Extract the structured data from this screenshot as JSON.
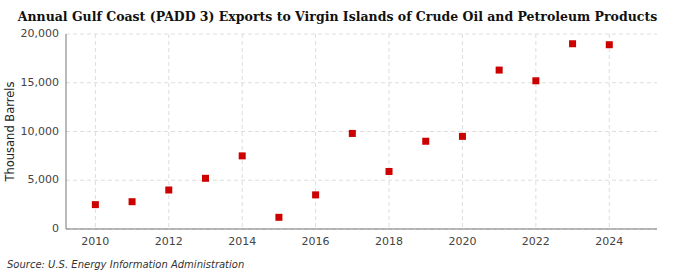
{
  "chart_data": {
    "type": "scatter",
    "title": "Annual Gulf Coast (PADD 3) Exports to Virgin Islands of Crude Oil and Petroleum Products",
    "ylabel": "Thousand Barrels",
    "annotations": [
      "Source: U.S. Energy Information Administration"
    ],
    "x": [
      2010,
      2011,
      2012,
      2013,
      2014,
      2015,
      2016,
      2017,
      2018,
      2019,
      2020,
      2021,
      2022,
      2023,
      2024
    ],
    "values": [
      2500,
      2800,
      4000,
      5200,
      7500,
      1200,
      3500,
      9800,
      5900,
      9000,
      9500,
      16300,
      15200,
      19000,
      18900
    ],
    "color": "#cc0000",
    "marker": "square",
    "xlim": [
      2009.2,
      2025.3
    ],
    "xticks": [
      2010,
      2012,
      2014,
      2016,
      2018,
      2020,
      2022,
      2024
    ],
    "ylim": [
      0,
      20000
    ],
    "yticks": [
      0,
      {
        "value": 5000,
        "label": "5,000"
      },
      {
        "value": 10000,
        "label": "10,000"
      },
      {
        "value": 15000,
        "label": "15,000"
      },
      {
        "value": 20000,
        "label": "20,000"
      }
    ],
    "grid": true
  }
}
